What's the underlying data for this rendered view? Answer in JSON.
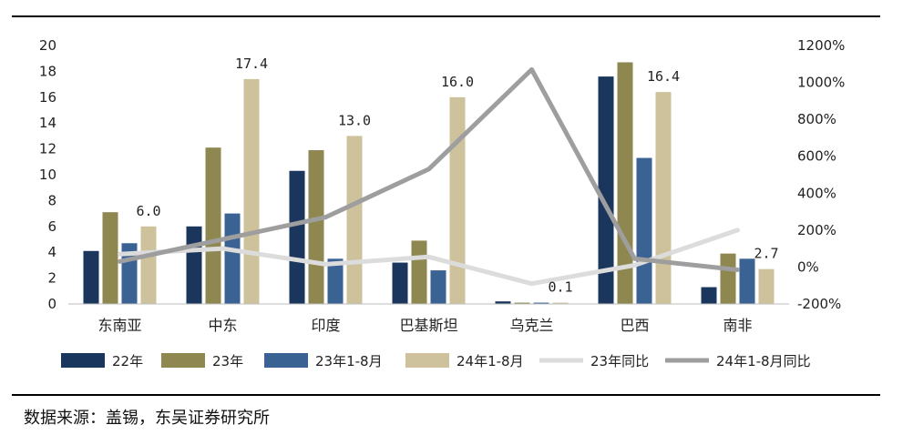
{
  "chart_data": {
    "type": "bar",
    "categories": [
      "东南亚",
      "中东",
      "印度",
      "巴基斯坦",
      "乌克兰",
      "巴西",
      "南非"
    ],
    "series": [
      {
        "name": "22年",
        "kind": "bar",
        "axis": "left",
        "color": "#1b365d",
        "values": [
          4.1,
          6.0,
          10.3,
          3.2,
          0.2,
          17.6,
          1.3
        ]
      },
      {
        "name": "23年",
        "kind": "bar",
        "axis": "left",
        "color": "#8e8750",
        "values": [
          7.1,
          12.1,
          11.9,
          4.9,
          0.1,
          18.7,
          3.9
        ]
      },
      {
        "name": "23年1-8月",
        "kind": "bar",
        "axis": "left",
        "color": "#3a6293",
        "values": [
          4.7,
          7.0,
          3.5,
          2.6,
          0.1,
          11.3,
          3.5
        ]
      },
      {
        "name": "24年1-8月",
        "kind": "bar",
        "axis": "left",
        "color": "#cdc29b",
        "values": [
          6.0,
          17.4,
          13.0,
          16.0,
          0.1,
          16.4,
          2.7
        ]
      },
      {
        "name": "23年同比",
        "kind": "line",
        "axis": "right",
        "color": "#dcdcdc",
        "values": [
          70,
          100,
          15,
          55,
          -90,
          10,
          200
        ]
      },
      {
        "name": "24年1-8月同比",
        "kind": "line",
        "axis": "right",
        "color": "#9e9e9e",
        "values": [
          30,
          150,
          270,
          530,
          1070,
          45,
          -15
        ]
      }
    ],
    "data_labels": {
      "series": "24年1-8月",
      "labels": [
        "6.0",
        "17.4",
        "13.0",
        "16.0",
        "0.1",
        "16.4",
        "2.7"
      ]
    },
    "y_left": {
      "min": 0,
      "max": 20,
      "ticks": [
        "0",
        "2",
        "4",
        "6",
        "8",
        "10",
        "12",
        "14",
        "16",
        "18",
        "20"
      ]
    },
    "y_right": {
      "min": -200,
      "max": 1200,
      "ticks": [
        "-200%",
        "0%",
        "200%",
        "400%",
        "600%",
        "800%",
        "1000%",
        "1200%"
      ]
    },
    "legend_position": "bottom",
    "grid": false
  },
  "source": "数据来源：盖锡，东吴证券研究所"
}
